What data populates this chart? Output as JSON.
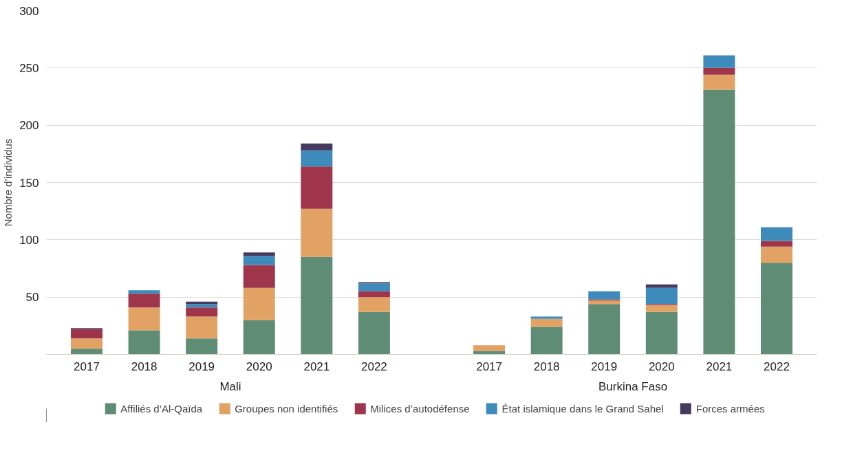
{
  "chart_data": {
    "type": "bar",
    "stacked": true,
    "ylabel": "Nombre d’individus",
    "categories": [
      "2017",
      "2018",
      "2019",
      "2020",
      "2021",
      "2022",
      null,
      "2017",
      "2018",
      "2019",
      "2020",
      "2021",
      "2022"
    ],
    "series": [
      {
        "name": "Affiliés d’Al-Qaïda",
        "color": "#5e8c74",
        "values": [
          5,
          21,
          14,
          30,
          85,
          37,
          null,
          3,
          24,
          44,
          37,
          231,
          80
        ]
      },
      {
        "name": "Groupes non identifiés",
        "color": "#e2a263",
        "values": [
          9,
          20,
          19,
          28,
          42,
          13,
          null,
          5,
          7,
          3,
          6,
          13,
          14
        ]
      },
      {
        "name": "Milices d’autodéfense",
        "color": "#9e354b",
        "values": [
          8,
          12,
          8,
          20,
          37,
          5,
          null,
          0,
          0,
          1,
          1,
          6,
          5
        ]
      },
      {
        "name": "État islamique dans le Grand Sahel",
        "color": "#3e8bbb",
        "values": [
          0,
          3,
          3,
          8,
          14,
          7,
          null,
          0,
          2,
          7,
          14,
          11,
          12
        ]
      },
      {
        "name": "Forces armées",
        "color": "#463a5e",
        "values": [
          1,
          0,
          2,
          3,
          6,
          1,
          null,
          0,
          0,
          0,
          3,
          0,
          0
        ]
      }
    ],
    "annotations": [
      "Mali",
      "Burkina Faso"
    ],
    "ylim": [
      0,
      300
    ],
    "yticks": [
      50,
      100,
      150,
      200,
      250,
      300
    ],
    "grid": "y",
    "legend": "bottom"
  }
}
